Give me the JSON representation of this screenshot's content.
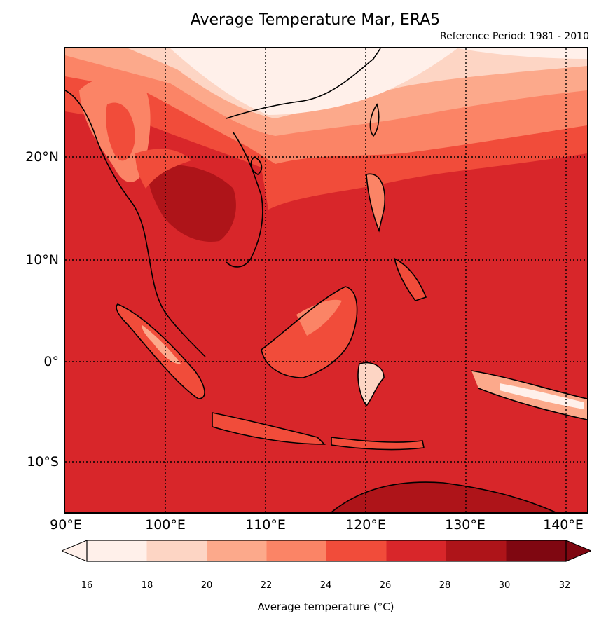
{
  "title": "Average Temperature Mar, ERA5",
  "subtitle": "Reference Period: 1981 - 2010",
  "lat_labels": [
    "20°N",
    "10°N",
    "0°",
    "10°S"
  ],
  "lon_labels": [
    "90°E",
    "100°E",
    "110°E",
    "120°E",
    "130°E",
    "140°E"
  ],
  "colorbar": {
    "label": "Average temperature (°C)",
    "ticks": [
      "16",
      "18",
      "20",
      "22",
      "24",
      "26",
      "28",
      "30",
      "32"
    ],
    "colors": [
      "#fff0ea",
      "#fdd5c4",
      "#fca98b",
      "#fb8466",
      "#f14c3a",
      "#d8262a",
      "#ae1419",
      "#7f0711"
    ]
  }
}
